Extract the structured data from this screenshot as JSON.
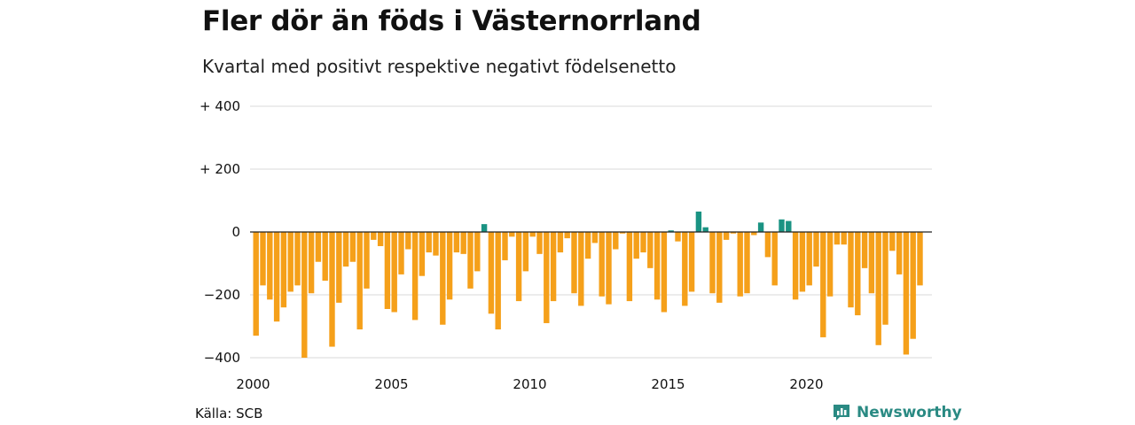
{
  "header": {
    "title": "Fler dör än föds i Västernorrland",
    "subtitle": "Kvartal med positivt respektive negativt födelsenetto"
  },
  "footer": {
    "source": "Källa: SCB",
    "brand": "Newsworthy"
  },
  "colors": {
    "negative": "#f5a01a",
    "positive": "#1a9383",
    "grid": "#d9d9d9",
    "zero": "#222222",
    "brand": "#2a8a83"
  },
  "chart_data": {
    "type": "bar",
    "title": "Fler dör än föds i Västernorrland",
    "subtitle": "Kvartal med positivt respektive negativt födelsenetto",
    "xlabel": "",
    "ylabel": "",
    "ylim": [
      -400,
      400
    ],
    "grid": true,
    "y_ticks": [
      {
        "value": 400,
        "label": "+ 400"
      },
      {
        "value": 200,
        "label": "+ 200"
      },
      {
        "value": 0,
        "label": "0"
      },
      {
        "value": -200,
        "label": "−200"
      },
      {
        "value": -400,
        "label": "−400"
      }
    ],
    "x_ticks": [
      {
        "value": 2000,
        "label": "2000"
      },
      {
        "value": 2005,
        "label": "2005"
      },
      {
        "value": 2010,
        "label": "2010"
      },
      {
        "value": 2015,
        "label": "2015"
      },
      {
        "value": 2020,
        "label": "2020"
      }
    ],
    "first_period": "2000 Q1",
    "values": [
      -330,
      -170,
      -215,
      -285,
      -240,
      -190,
      -170,
      -400,
      -195,
      -95,
      -155,
      -365,
      -225,
      -110,
      -95,
      -310,
      -180,
      -25,
      -45,
      -245,
      -255,
      -135,
      -55,
      -280,
      -140,
      -65,
      -75,
      -295,
      -215,
      -65,
      -70,
      -180,
      -125,
      25,
      -260,
      -310,
      -90,
      -15,
      -220,
      -125,
      -15,
      -70,
      -290,
      -220,
      -65,
      -20,
      -195,
      -235,
      -85,
      -35,
      -205,
      -230,
      -55,
      -5,
      -220,
      -85,
      -65,
      -115,
      -215,
      -255,
      5,
      -30,
      -235,
      -190,
      65,
      15,
      -195,
      -225,
      -25,
      -5,
      -205,
      -195,
      -10,
      30,
      -80,
      -170,
      40,
      35,
      -215,
      -190,
      -170,
      -110,
      -335,
      -205,
      -40,
      -40,
      -240,
      -265,
      -115,
      -195,
      -360,
      -295,
      -60,
      -135,
      -390,
      -340,
      -170
    ]
  }
}
